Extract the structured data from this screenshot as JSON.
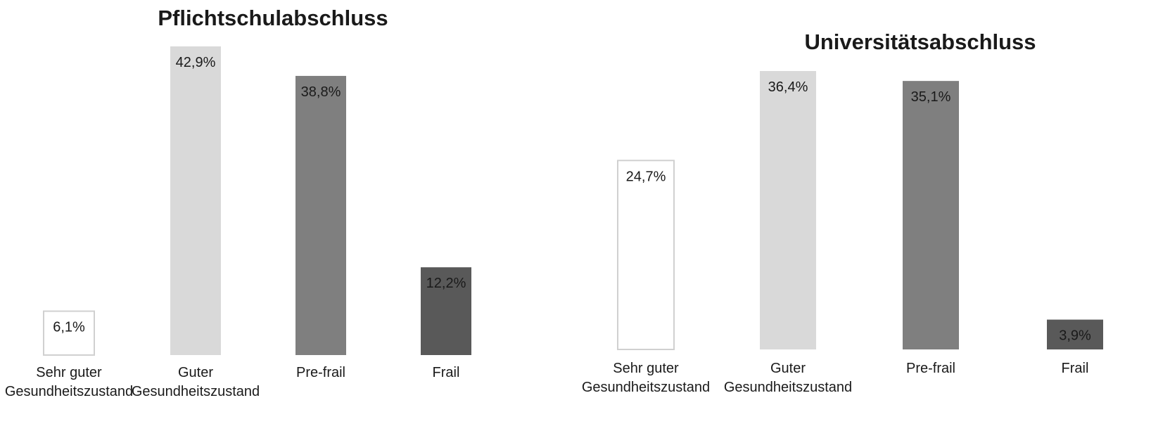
{
  "chart_data": [
    {
      "type": "bar",
      "title": "Pflichtschulabschluss",
      "categories": [
        "Sehr guter Gesundheitszustand",
        "Guter Gesundheitszustand",
        "Pre-frail",
        "Frail"
      ],
      "category_lines": [
        [
          "Sehr guter",
          "Gesundheitszustand"
        ],
        [
          "Guter",
          "Gesundheitszustand"
        ],
        [
          "Pre-frail"
        ],
        [
          "Frail"
        ]
      ],
      "values": [
        6.1,
        42.9,
        38.8,
        12.2
      ],
      "value_labels": [
        "6,1%",
        "42,9%",
        "38,8%",
        "12,2%"
      ],
      "unit": "%",
      "grid": false,
      "legend": "none"
    },
    {
      "type": "bar",
      "title": "Universitätsabschluss",
      "categories": [
        "Sehr guter Gesundheitszustand",
        "Guter Gesundheitszustand",
        "Pre-frail",
        "Frail"
      ],
      "category_lines": [
        [
          "Sehr guter",
          "Gesundheitszustand"
        ],
        [
          "Guter",
          "Gesundheitszustand"
        ],
        [
          "Pre-frail"
        ],
        [
          "Frail"
        ]
      ],
      "values": [
        24.7,
        36.4,
        35.1,
        3.9
      ],
      "value_labels": [
        "24,7%",
        "36,4%",
        "35,1%",
        "3,9%"
      ],
      "unit": "%",
      "grid": false,
      "legend": "none"
    }
  ],
  "colors": {
    "sehr_guter": "#ffffff",
    "guter": "#d9d9d9",
    "pre_frail": "#7f7f7f",
    "frail": "#595959",
    "bar_outline": "#d0d0d0",
    "text": "#1a1a1a"
  }
}
